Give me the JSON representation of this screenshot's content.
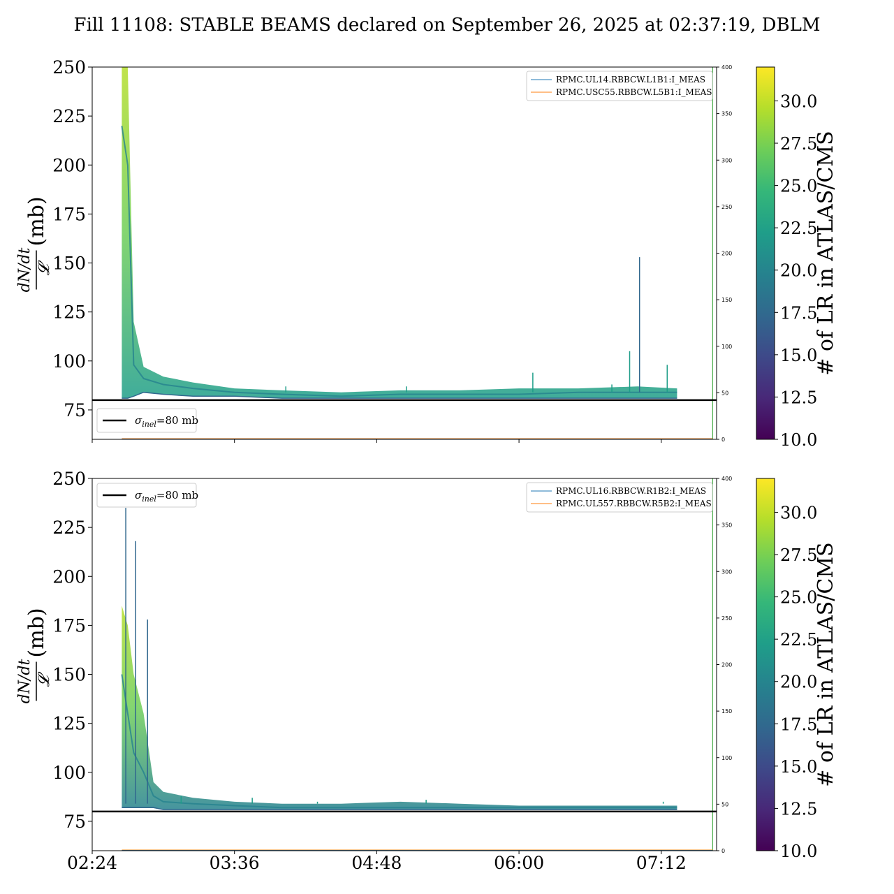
{
  "title": "Fill 11108: STABLE BEAMS declared on September 26, 2025 at 02:37:19, DBLM",
  "colors": {
    "viridis": [
      "#440154",
      "#482878",
      "#3e4989",
      "#31688e",
      "#26828e",
      "#1f9e89",
      "#35b779",
      "#6ece58",
      "#b5de2b",
      "#fde725"
    ],
    "reference_line": "#000000",
    "series_blue": "#1f77b4",
    "series_orange": "#ff7f0e",
    "end_marker": "#2ca02c"
  },
  "colorbar": {
    "label": "# of LR in ATLAS/CMS",
    "range": [
      10.0,
      32.0
    ],
    "ticks": [
      "10.0",
      "12.5",
      "15.0",
      "17.5",
      "20.0",
      "22.5",
      "25.0",
      "27.5",
      "30.0"
    ]
  },
  "chart_data": [
    {
      "type": "line",
      "panel": "top",
      "ylabel_fraction": {
        "numerator": "dN/dt",
        "denominator": "𝓛"
      },
      "ylabel_unit": "(mb)",
      "xlim": [
        "02:24",
        "07:40"
      ],
      "ylim": [
        60,
        250
      ],
      "yticks": [
        75,
        100,
        125,
        150,
        175,
        200,
        225,
        250
      ],
      "x_ticks": [
        "02:24",
        "03:36",
        "04:48",
        "06:00",
        "07:12"
      ],
      "y2lim": [
        0,
        400
      ],
      "y2ticks": [
        0,
        50,
        100,
        150,
        200,
        250,
        300,
        350,
        400
      ],
      "x_ticklabels_visible": false,
      "reference_line": {
        "y": 80,
        "label_symbol": "σ",
        "label_sub": "inel",
        "label_value": "=80 mb"
      },
      "legend_series": [
        "RPMC.UL14.RBBCW.L1B1:I_MEAS",
        "RPMC.USC55.RBBCW.L5B1:I_MEAS"
      ],
      "legend_placement": "upper right",
      "reference_legend_placement": "lower left",
      "series": [
        {
          "name": "cross-section band upper",
          "x": [
            "02:39",
            "02:42",
            "02:45",
            "02:50",
            "03:00",
            "03:15",
            "03:36",
            "04:00",
            "04:30",
            "05:00",
            "05:30",
            "06:00",
            "06:30",
            "07:00",
            "07:20"
          ],
          "values": [
            250,
            250,
            120,
            97,
            92,
            89,
            86,
            85,
            84,
            85,
            85,
            86,
            86,
            87,
            86
          ]
        },
        {
          "name": "cross-section band center",
          "x": [
            "02:39",
            "02:42",
            "02:45",
            "02:50",
            "03:00",
            "03:15",
            "03:36",
            "04:00",
            "04:30",
            "05:00",
            "05:30",
            "06:00",
            "06:30",
            "07:00",
            "07:20"
          ],
          "values": [
            220,
            200,
            98,
            91,
            88,
            86,
            84,
            83,
            82,
            83,
            83,
            83,
            84,
            84,
            84
          ]
        },
        {
          "name": "cross-section band lower",
          "x": [
            "02:39",
            "02:42",
            "02:45",
            "02:50",
            "03:00",
            "03:15",
            "03:36",
            "04:00",
            "04:30",
            "05:00",
            "05:30",
            "06:00",
            "06:30",
            "07:00",
            "07:20"
          ],
          "values": [
            81,
            81,
            82,
            84,
            83,
            82,
            82,
            81,
            81,
            81,
            81,
            81,
            81,
            81,
            81
          ]
        },
        {
          "name": "spikes",
          "x": [
            "04:02",
            "05:03",
            "06:07",
            "06:47",
            "06:56",
            "07:01",
            "07:15"
          ],
          "values": [
            87,
            87,
            94,
            88,
            105,
            153,
            98
          ]
        }
      ],
      "end_marker_x": "07:38"
    },
    {
      "type": "line",
      "panel": "bottom",
      "ylabel_fraction": {
        "numerator": "dN/dt",
        "denominator": "𝓛"
      },
      "ylabel_unit": "(mb)",
      "xlim": [
        "02:24",
        "07:40"
      ],
      "ylim": [
        60,
        250
      ],
      "yticks": [
        75,
        100,
        125,
        150,
        175,
        200,
        225,
        250
      ],
      "x_ticks": [
        "02:24",
        "03:36",
        "04:48",
        "06:00",
        "07:12"
      ],
      "y2lim": [
        0,
        400
      ],
      "y2ticks": [
        0,
        50,
        100,
        150,
        200,
        250,
        300,
        350,
        400
      ],
      "x_ticklabels_visible": true,
      "reference_line": {
        "y": 80,
        "label_symbol": "σ",
        "label_sub": "inel",
        "label_value": "=80 mb"
      },
      "legend_series": [
        "RPMC.UL16.RBBCW.R1B2:I_MEAS",
        "RPMC.UL557.RBBCW.R5B2:I_MEAS"
      ],
      "legend_placement": "upper right",
      "reference_legend_placement": "upper left",
      "series": [
        {
          "name": "cross-section band upper",
          "x": [
            "02:39",
            "02:42",
            "02:45",
            "02:50",
            "02:55",
            "03:00",
            "03:15",
            "03:36",
            "04:00",
            "04:30",
            "05:00",
            "05:30",
            "06:00",
            "06:30",
            "07:00",
            "07:20"
          ],
          "values": [
            185,
            175,
            150,
            130,
            95,
            90,
            87,
            85,
            84,
            84,
            85,
            84,
            83,
            83,
            83,
            83
          ]
        },
        {
          "name": "cross-section band center",
          "x": [
            "02:39",
            "02:42",
            "02:45",
            "02:50",
            "02:55",
            "03:00",
            "03:15",
            "03:36",
            "04:00",
            "04:30",
            "05:00",
            "05:30",
            "06:00",
            "06:30",
            "07:00",
            "07:20"
          ],
          "values": [
            150,
            130,
            110,
            100,
            88,
            85,
            84,
            83,
            82,
            82,
            82,
            82,
            82,
            82,
            82,
            82
          ]
        },
        {
          "name": "cross-section band lower",
          "x": [
            "02:39",
            "02:42",
            "02:45",
            "02:50",
            "02:55",
            "03:00",
            "03:15",
            "03:36",
            "04:00",
            "04:30",
            "05:00",
            "05:30",
            "06:00",
            "06:30",
            "07:00",
            "07:20"
          ],
          "values": [
            82,
            82,
            82,
            82,
            82,
            81,
            81,
            81,
            81,
            81,
            81,
            81,
            81,
            81,
            81,
            81
          ]
        },
        {
          "name": "spikes",
          "x": [
            "02:41",
            "02:46",
            "02:52",
            "03:09",
            "03:45",
            "04:18",
            "05:13",
            "07:13"
          ],
          "values": [
            235,
            218,
            178,
            88,
            87,
            85,
            86,
            85
          ]
        }
      ],
      "end_marker_x": "07:38"
    }
  ]
}
